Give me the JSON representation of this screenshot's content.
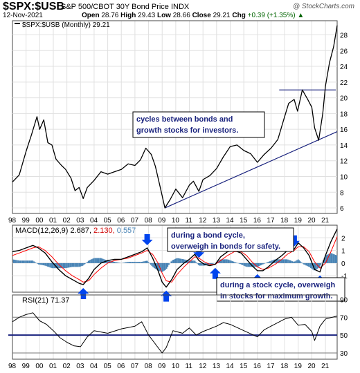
{
  "header": {
    "symbol": "$SPX:$USB",
    "description": "S&P 500/CBOT 30Y Bond Price INDX",
    "watermark": "@ StockCharts.com",
    "date": "12-Nov-2021",
    "open_label": "Open",
    "open": "28.76",
    "high_label": "High",
    "high": "29.43",
    "low_label": "Low",
    "low": "28.66",
    "close_label": "Close",
    "close": "29.21",
    "chg_label": "Chg",
    "chg": "+0.39 (+1.35%)",
    "chg_icon": "up-triangle-icon",
    "chg_color": "#006400"
  },
  "chart_data": [
    {
      "type": "line",
      "legend": "$SPX:$USB (Monthly) 29.21",
      "x_ticks": [
        "98",
        "99",
        "00",
        "01",
        "02",
        "03",
        "04",
        "05",
        "06",
        "07",
        "08",
        "09",
        "10",
        "11",
        "12",
        "13",
        "14",
        "15",
        "16",
        "17",
        "18",
        "19",
        "20",
        "21"
      ],
      "yticks": [
        6,
        8,
        10,
        12,
        14,
        16,
        18,
        20,
        22,
        24,
        26,
        28
      ],
      "ylim": [
        5.3,
        29.8
      ],
      "color": "#000000",
      "x": [
        1998.0,
        1998.5,
        1999.0,
        1999.4,
        1999.8,
        2000.0,
        2000.3,
        2000.6,
        2000.9,
        2001.2,
        2001.6,
        2001.9,
        2002.3,
        2002.6,
        2002.9,
        2003.2,
        2003.5,
        2004.0,
        2004.5,
        2005.0,
        2005.5,
        2006.0,
        2006.5,
        2007.0,
        2007.4,
        2007.8,
        2008.2,
        2008.5,
        2008.9,
        2009.2,
        2009.6,
        2010.0,
        2010.5,
        2011.0,
        2011.3,
        2011.7,
        2012.0,
        2012.5,
        2013.0,
        2013.5,
        2014.0,
        2014.5,
        2015.0,
        2015.5,
        2016.0,
        2016.5,
        2017.0,
        2017.5,
        2018.0,
        2018.3,
        2018.7,
        2018.95,
        2019.3,
        2019.7,
        2020.0,
        2020.2,
        2020.5,
        2020.8,
        2021.0,
        2021.3,
        2021.6,
        2021.86
      ],
      "y": [
        9.3,
        10.2,
        13.2,
        15.3,
        17.6,
        16.0,
        17.2,
        14.3,
        14.0,
        12.2,
        11.4,
        10.9,
        9.8,
        8.2,
        8.6,
        7.2,
        8.6,
        9.5,
        10.6,
        10.3,
        10.6,
        10.9,
        11.6,
        11.4,
        12.1,
        13.6,
        12.8,
        11.3,
        8.3,
        6.0,
        7.1,
        8.4,
        7.3,
        8.9,
        9.4,
        8.1,
        9.6,
        10.1,
        11.0,
        12.5,
        13.8,
        14.0,
        13.3,
        12.9,
        11.8,
        12.8,
        13.6,
        14.7,
        17.6,
        19.3,
        19.8,
        18.3,
        21.0,
        19.8,
        18.8,
        16.2,
        14.6,
        18.0,
        21.5,
        24.5,
        26.5,
        29.2
      ],
      "trendline": {
        "from": [
          2009.2,
          6.0
        ],
        "to": [
          2021.86,
          15.7
        ]
      },
      "resistance_level": 21.0,
      "annotation": "cycles between bonds and growth stocks for investors."
    },
    {
      "type": "line",
      "legend_label": "MACD(12,26,9)",
      "macd": "2.687",
      "signal": "2.130",
      "histogram": "0.557",
      "yticks": [
        -1,
        0,
        1,
        2
      ],
      "ylim": [
        -2.3,
        3.0
      ],
      "macd_color": "#000000",
      "signal_color": "#ff0000",
      "histogram_color": "#4682b4",
      "x": [
        1998.0,
        1998.5,
        1999.0,
        1999.5,
        1999.9,
        2000.4,
        2000.9,
        2001.4,
        2001.9,
        2002.4,
        2002.9,
        2003.2,
        2003.6,
        2004.0,
        2004.5,
        2005.0,
        2005.5,
        2006.0,
        2006.5,
        2007.0,
        2007.5,
        2007.9,
        2008.3,
        2008.7,
        2009.0,
        2009.3,
        2009.7,
        2010.1,
        2010.6,
        2011.0,
        2011.4,
        2011.7,
        2012.1,
        2012.5,
        2012.9,
        2013.3,
        2013.8,
        2014.3,
        2014.8,
        2015.2,
        2015.6,
        2016.0,
        2016.4,
        2016.8,
        2017.3,
        2017.8,
        2018.2,
        2018.7,
        2019.0,
        2019.4,
        2019.8,
        2020.2,
        2020.6,
        2021.0,
        2021.4,
        2021.86
      ],
      "y": [
        0.9,
        1.0,
        1.2,
        1.4,
        1.2,
        0.8,
        0.1,
        -0.5,
        -1.0,
        -1.3,
        -1.6,
        -1.7,
        -1.2,
        -0.5,
        0.0,
        0.2,
        0.3,
        0.3,
        0.5,
        0.7,
        0.9,
        1.2,
        0.4,
        -0.6,
        -1.5,
        -1.9,
        -1.3,
        -0.5,
        0.0,
        0.3,
        0.7,
        0.2,
        -0.1,
        -0.2,
        -0.1,
        0.5,
        0.9,
        1.0,
        0.8,
        0.3,
        -0.2,
        -0.6,
        -0.6,
        -0.3,
        0.2,
        0.6,
        1.0,
        1.1,
        1.6,
        1.2,
        0.6,
        -0.5,
        -0.7,
        0.6,
        1.7,
        2.7
      ],
      "signal_values": [
        0.6,
        0.8,
        1.0,
        1.2,
        1.3,
        1.0,
        0.5,
        -0.1,
        -0.6,
        -1.0,
        -1.3,
        -1.5,
        -1.4,
        -0.9,
        -0.4,
        0.0,
        0.2,
        0.3,
        0.4,
        0.6,
        0.8,
        1.0,
        0.7,
        0.0,
        -0.8,
        -1.4,
        -1.5,
        -0.9,
        -0.3,
        0.1,
        0.5,
        0.4,
        0.1,
        -0.1,
        -0.1,
        0.2,
        0.6,
        0.9,
        0.9,
        0.6,
        0.1,
        -0.3,
        -0.5,
        -0.4,
        -0.1,
        0.3,
        0.7,
        1.0,
        1.3,
        1.3,
        0.9,
        0.1,
        -0.4,
        0.0,
        0.9,
        2.1
      ],
      "annotations": [
        "during a bond cycle, overweigh in bonds for safety.",
        "during a stock cycle, overweigh in stocks for maximum growth."
      ],
      "down_arrow_x": [
        2007.9,
        2011.7,
        2018.7
      ],
      "up_arrow_x": [
        2003.2,
        2009.3,
        2012.9,
        2016.0,
        2020.6
      ]
    },
    {
      "type": "line",
      "legend_label": "RSI(21)",
      "rsi": "71.37",
      "yticks": [
        30,
        50,
        70,
        90
      ],
      "ylim": [
        23,
        95
      ],
      "reference_levels": [
        70,
        50,
        30
      ],
      "x": [
        1998.0,
        1998.5,
        1999.0,
        1999.5,
        2000.0,
        2000.5,
        2001.0,
        2001.5,
        2002.0,
        2002.5,
        2003.0,
        2003.5,
        2004.0,
        2005.0,
        2006.0,
        2007.0,
        2007.5,
        2008.0,
        2008.5,
        2009.0,
        2009.3,
        2009.8,
        2010.5,
        2011.0,
        2011.5,
        2012.0,
        2013.0,
        2013.5,
        2014.0,
        2015.0,
        2016.0,
        2016.5,
        2017.0,
        2018.0,
        2018.5,
        2019.0,
        2019.5,
        2020.0,
        2020.2,
        2020.6,
        2021.0,
        2021.5,
        2021.86
      ],
      "y": [
        65,
        70,
        73,
        75,
        66,
        62,
        55,
        47,
        42,
        38,
        37,
        48,
        55,
        52,
        57,
        60,
        65,
        50,
        40,
        30,
        36,
        55,
        52,
        58,
        50,
        54,
        60,
        64,
        62,
        55,
        48,
        56,
        60,
        68,
        70,
        61,
        62,
        54,
        44,
        60,
        68,
        70,
        71.4
      ]
    }
  ]
}
